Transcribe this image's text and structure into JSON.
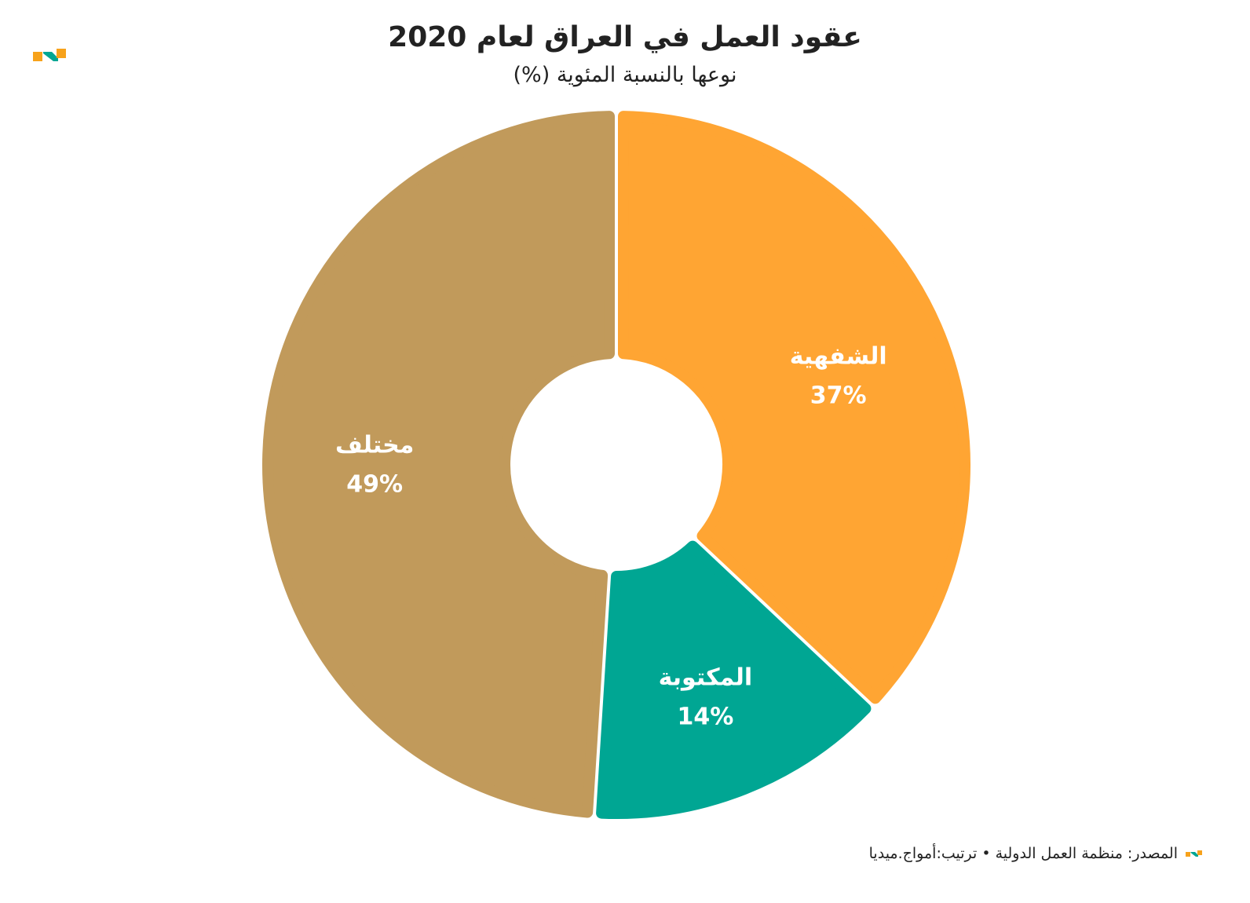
{
  "colors": {
    "orange": "#FFA533",
    "teal": "#00A693",
    "tan": "#C19A5B",
    "brand_orange": "#F7A21B",
    "brand_teal": "#00A693"
  },
  "header": {
    "logo_icon": "brand-logo-icon"
  },
  "chart_data": {
    "type": "pie",
    "variant": "donut",
    "title": "عقود العمل في العراق لعام 2020",
    "subtitle": "نوعها بالنسبة المئوية (%)",
    "slices": [
      {
        "label": "الشفهية",
        "value": 37,
        "value_label": "37%",
        "color": "#FFA533"
      },
      {
        "label": "المكتوبة",
        "value": 14,
        "value_label": "14%",
        "color": "#00A693"
      },
      {
        "label": "مختلف",
        "value": 49,
        "value_label": "49%",
        "color": "#C19A5B"
      }
    ],
    "start": "top",
    "direction": "clockwise"
  },
  "footer": {
    "source": "المصدر: منظمة العمل الدولية • ترتيب:أمواج.ميديا",
    "logo_icon": "brand-logo-small-icon"
  }
}
